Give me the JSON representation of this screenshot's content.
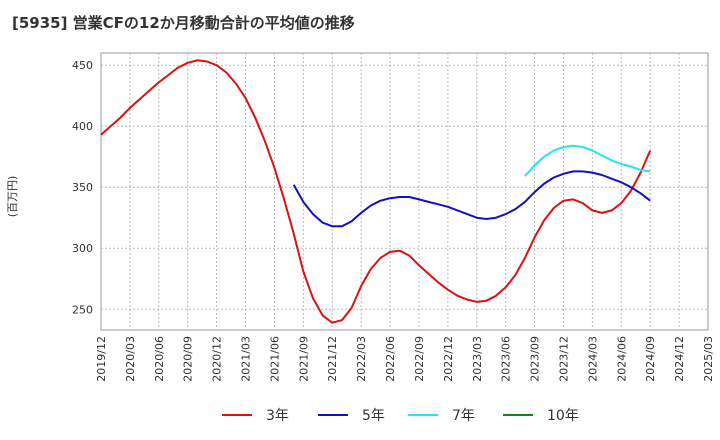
{
  "chart_data": {
    "type": "line",
    "title": "[5935]  営業CFの12か月移動合計の平均値の推移",
    "ylabel": "(百万円)",
    "xlabel": "",
    "ylim": [
      233,
      460
    ],
    "yticks": [
      250,
      300,
      350,
      400,
      450
    ],
    "grid": true,
    "legend_position": "bottom",
    "x_tick_labels": [
      "2019/12",
      "2020/03",
      "2020/06",
      "2020/09",
      "2020/12",
      "2021/03",
      "2021/06",
      "2021/09",
      "2021/12",
      "2022/03",
      "2022/06",
      "2022/09",
      "2022/12",
      "2023/03",
      "2023/06",
      "2023/09",
      "2023/12",
      "2024/03",
      "2024/06",
      "2024/09",
      "2024/12",
      "2025/03"
    ],
    "series": [
      {
        "name": "3年",
        "color": "#dd1111",
        "x": [
          "2019/12",
          "2020/01",
          "2020/02",
          "2020/03",
          "2020/04",
          "2020/05",
          "2020/06",
          "2020/07",
          "2020/08",
          "2020/09",
          "2020/10",
          "2020/11",
          "2020/12",
          "2021/01",
          "2021/02",
          "2021/03",
          "2021/04",
          "2021/05",
          "2021/06",
          "2021/07",
          "2021/08",
          "2021/09",
          "2021/10",
          "2021/11",
          "2021/12",
          "2022/01",
          "2022/02",
          "2022/03",
          "2022/04",
          "2022/05",
          "2022/06",
          "2022/07",
          "2022/08",
          "2022/09",
          "2022/10",
          "2022/11",
          "2022/12",
          "2023/01",
          "2023/02",
          "2023/03",
          "2023/04",
          "2023/05",
          "2023/06",
          "2023/07",
          "2023/08",
          "2023/09",
          "2023/10",
          "2023/11",
          "2023/12",
          "2024/01",
          "2024/02",
          "2024/03",
          "2024/04",
          "2024/05",
          "2024/06",
          "2024/07",
          "2024/08",
          "2024/09"
        ],
        "values": [
          393,
          400,
          407,
          415,
          422,
          429,
          436,
          442,
          448,
          452,
          454,
          453,
          450,
          444,
          435,
          423,
          407,
          388,
          366,
          340,
          312,
          281,
          259,
          245,
          239,
          241,
          251,
          269,
          283,
          292,
          297,
          298,
          294,
          286,
          279,
          272,
          266,
          261,
          258,
          256,
          257,
          261,
          268,
          278,
          292,
          309,
          323,
          333,
          339,
          340,
          337,
          331,
          329,
          331,
          337,
          347,
          362,
          380
        ]
      },
      {
        "name": "5年",
        "color": "#1111cc",
        "x": [
          "2021/08",
          "2021/09",
          "2021/10",
          "2021/11",
          "2021/12",
          "2022/01",
          "2022/02",
          "2022/03",
          "2022/04",
          "2022/05",
          "2022/06",
          "2022/07",
          "2022/08",
          "2022/09",
          "2022/10",
          "2022/11",
          "2022/12",
          "2023/01",
          "2023/02",
          "2023/03",
          "2023/04",
          "2023/05",
          "2023/06",
          "2023/07",
          "2023/08",
          "2023/09",
          "2023/10",
          "2023/11",
          "2023/12",
          "2024/01",
          "2024/02",
          "2024/03",
          "2024/04",
          "2024/05",
          "2024/06",
          "2024/07",
          "2024/08",
          "2024/09"
        ],
        "values": [
          352,
          338,
          328,
          321,
          318,
          318,
          322,
          329,
          335,
          339,
          341,
          342,
          342,
          340,
          338,
          336,
          334,
          331,
          328,
          325,
          324,
          325,
          328,
          332,
          338,
          346,
          353,
          358,
          361,
          363,
          363,
          362,
          360,
          357,
          354,
          350,
          345,
          339
        ]
      },
      {
        "name": "7年",
        "color": "#22e5ee",
        "x": [
          "2023/08",
          "2023/09",
          "2023/10",
          "2023/11",
          "2023/12",
          "2024/01",
          "2024/02",
          "2024/03",
          "2024/04",
          "2024/05",
          "2024/06",
          "2024/07",
          "2024/08",
          "2024/09"
        ],
        "values": [
          359,
          368,
          375,
          380,
          383,
          384,
          383,
          380,
          376,
          372,
          369,
          367,
          364,
          363
        ]
      },
      {
        "name": "10年",
        "color": "#118811",
        "x": [],
        "values": []
      }
    ]
  }
}
